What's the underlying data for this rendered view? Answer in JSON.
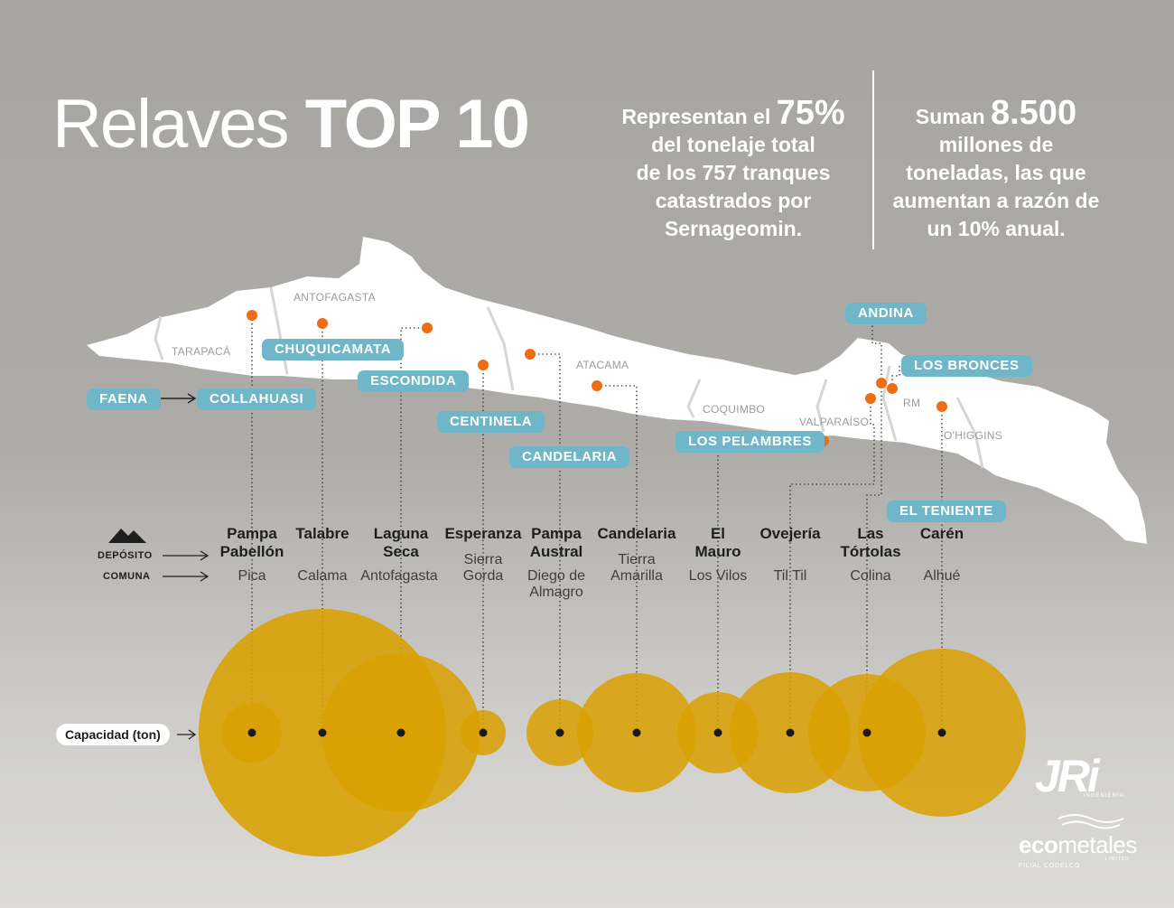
{
  "title": {
    "part1": "Relaves",
    "part2": "TOP 10"
  },
  "stat_left": {
    "l1a": "Representan el",
    "l1b": "75%",
    "l2": "del tonelaje total",
    "l3": "de los 757 tranques",
    "l4": "catastrados por",
    "l5": "Sernageomin."
  },
  "stat_right": {
    "l1a": "Suman",
    "l1b": "8.500",
    "l2": "millones de",
    "l3": "toneladas, las que",
    "l4": "aumentan a razón de",
    "l5": "un 10% anual."
  },
  "regions": [
    "TARAPACÁ",
    "ANTOFAGASTA",
    "ATACAMA",
    "COQUIMBO",
    "VALPARAÍSO",
    "RM",
    "O'HIGGINS"
  ],
  "mines": [
    "FAENA",
    "COLLAHUASI",
    "CHUQUICAMATA",
    "ESCONDIDA",
    "CENTINELA",
    "CANDELARIA",
    "LOS PELAMBRES",
    "ANDINA",
    "LOS BRONCES",
    "EL TENIENTE"
  ],
  "legend": {
    "deposito": "DEPÓSITO",
    "comuna": "COMUNA",
    "capacidad": "Capacidad (ton)"
  },
  "deposits": [
    {
      "name1": "Pampa",
      "name2": "Pabellón",
      "comuna1": "Pica",
      "comuna2": ""
    },
    {
      "name1": "Talabre",
      "name2": "",
      "comuna1": "Calama",
      "comuna2": ""
    },
    {
      "name1": "Laguna",
      "name2": "Seca",
      "comuna1": "Antofagasta",
      "comuna2": ""
    },
    {
      "name1": "Esperanza",
      "name2": "",
      "comuna1": "Sierra",
      "comuna2": "Gorda"
    },
    {
      "name1": "Pampa",
      "name2": "Austral",
      "comuna1": "Diego de",
      "comuna2": "Almagro"
    },
    {
      "name1": "Candelaria",
      "name2": "",
      "comuna1": "Tierra",
      "comuna2": "Amarilla"
    },
    {
      "name1": "El",
      "name2": "Mauro",
      "comuna1": "Los Vilos",
      "comuna2": ""
    },
    {
      "name1": "Ovejería",
      "name2": "",
      "comuna1": "Til Til",
      "comuna2": ""
    },
    {
      "name1": "Las",
      "name2": "Tórtolas",
      "comuna1": "Colina",
      "comuna2": ""
    },
    {
      "name1": "Carén",
      "name2": "",
      "comuna1": "Alhué",
      "comuna2": ""
    }
  ],
  "colors": {
    "circle": "#d9a000",
    "overlap": "#d36a00",
    "pill": "#6fb6c8",
    "marker": "#ee6c14"
  },
  "logos": {
    "jri": "JRi",
    "jri_sub": "INGENIERIA",
    "eco_a": "eco",
    "eco_b": "metales",
    "eco_sub": "LIMITED",
    "eco_foot": "FILIAL CODELCO"
  }
}
